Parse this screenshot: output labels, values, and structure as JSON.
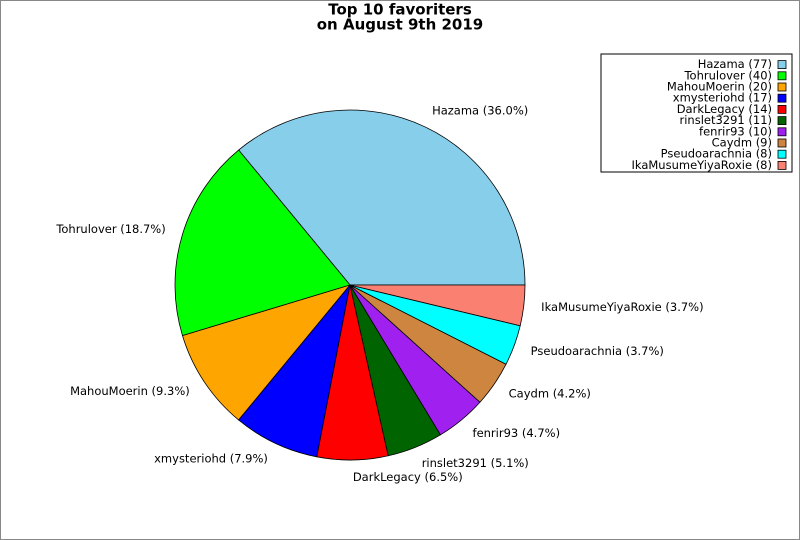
{
  "chart_data": {
    "type": "pie",
    "title": "Top 10 favoriters",
    "subtitle": "on August 9th 2019",
    "categories": [
      "Hazama",
      "Tohrulover",
      "MahouMoerin",
      "xmysteriohd",
      "DarkLegacy",
      "rinslet3291",
      "fenrir93",
      "Caydm",
      "Pseudoarachnia",
      "IkaMusumeYiyaRoxie"
    ],
    "values": [
      77,
      40,
      20,
      17,
      14,
      11,
      10,
      9,
      8,
      8
    ],
    "legend_labels": [
      "Hazama (77)",
      "Tohrulover (40)",
      "MahouMoerin (20)",
      "xmysteriohd (17)",
      "DarkLegacy (14)",
      "rinslet3291 (11)",
      "fenrir93 (10)",
      "Caydm (9)",
      "Pseudoarachnia (8)",
      "IkaMusumeYiyaRoxie (8)"
    ],
    "percents": [
      36.0,
      18.7,
      9.3,
      7.9,
      6.5,
      5.1,
      4.7,
      4.2,
      3.7,
      3.7
    ],
    "value_labels": [
      "Hazama (36.0%)",
      "Tohrulover (18.7%)",
      "MahouMoerin (9.3%)",
      "xmysteriohd (7.9%)",
      "DarkLegacy (6.5%)",
      "rinslet3291 (5.1%)",
      "fenrir93 (4.7%)",
      "Caydm (4.2%)",
      "Pseudoarachnia (3.7%)",
      "IkaMusumeYiyaRoxie (3.7%)"
    ],
    "colors": [
      "#87ceeb",
      "#00ff00",
      "#ffa500",
      "#0000ff",
      "#ff0000",
      "#006400",
      "#a020f0",
      "#cd853f",
      "#00ffff",
      "#fa8072"
    ],
    "legend_position": "upper right"
  }
}
